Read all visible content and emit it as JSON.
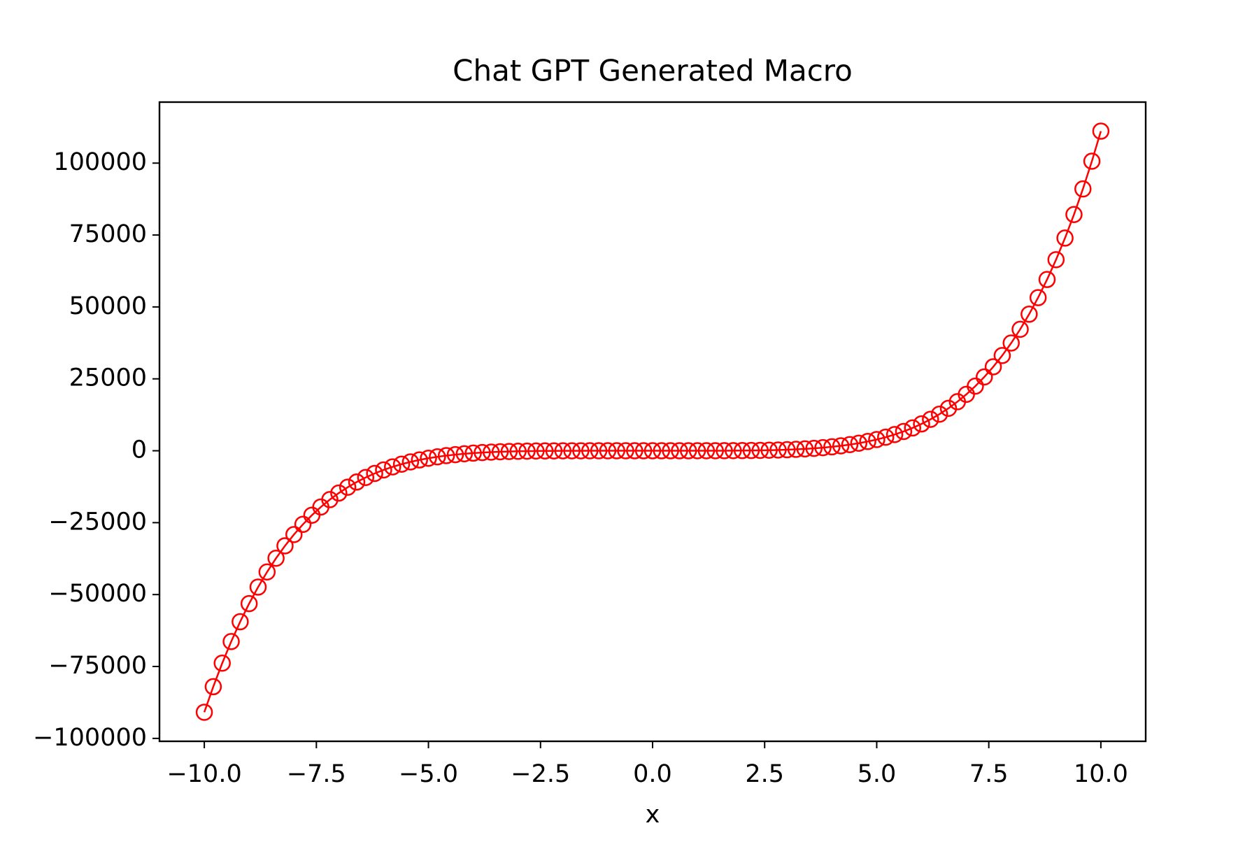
{
  "chart_data": {
    "type": "line",
    "title": "Chat GPT Generated Macro",
    "x_label": "x",
    "marker": "open-circle",
    "color": "#ff0000",
    "grid": false,
    "xlim": [
      -11,
      11
    ],
    "ylim": [
      -101010,
      121212
    ],
    "xticks": [
      {
        "value": -10,
        "label": "−10.0"
      },
      {
        "value": -7.5,
        "label": "−7.5"
      },
      {
        "value": -5,
        "label": "−5.0"
      },
      {
        "value": -2.5,
        "label": "−2.5"
      },
      {
        "value": 0,
        "label": "0.0"
      },
      2.5,
      {
        "value": 5,
        "label": "5.0"
      },
      7.5,
      {
        "value": 10,
        "label": "10.0"
      }
    ],
    "yticks": [
      {
        "value": -100000,
        "label": "−100000"
      },
      {
        "value": -75000,
        "label": "−75000"
      },
      {
        "value": -50000,
        "label": "−50000"
      },
      {
        "value": -25000,
        "label": "−25000"
      },
      0,
      25000,
      50000,
      75000,
      100000
    ],
    "x": [
      -10,
      -9.8,
      -9.6,
      -9.4,
      -9.2,
      -9,
      -8.8,
      -8.6,
      -8.4,
      -8.2,
      -8,
      -7.8,
      -7.6,
      -7.4,
      -7.2,
      -7,
      -6.8,
      -6.6,
      -6.4,
      -6.2,
      -6,
      -5.8,
      -5.6,
      -5.4,
      -5.2,
      -5,
      -4.8,
      -4.6,
      -4.4,
      -4.2,
      -4,
      -3.8,
      -3.6,
      -3.4,
      -3.2,
      -3,
      -2.8,
      -2.6,
      -2.4,
      -2.2,
      -2,
      -1.8,
      -1.6,
      -1.4,
      -1.2,
      -1,
      -0.8,
      -0.6,
      -0.4,
      -0.2,
      0,
      0.2,
      0.4,
      0.6,
      0.8,
      1,
      1.2,
      1.4,
      1.6,
      1.8,
      2,
      2.2,
      2.4,
      2.6,
      2.8,
      3,
      3.2,
      3.4,
      3.6,
      3.8,
      4,
      4.2,
      4.4,
      4.6,
      4.8,
      5,
      5.2,
      5.4,
      5.6,
      5.8,
      6,
      6.2,
      6.4,
      6.6,
      6.8,
      7,
      7.2,
      7.4,
      7.6,
      7.8,
      8,
      8.2,
      8.4,
      8.6,
      8.8,
      9,
      9.2,
      9.4,
      9.6,
      9.8,
      10
    ],
    "values": [
      -90909,
      -82022.4,
      -73845,
      -66333.5,
      -59446.5,
      -53144,
      -47388.1,
      -42142.3,
      -37372,
      -33044.1,
      -29127,
      -25590.8,
      -22406.9,
      -19548.3,
      -16989.4,
      -14706,
      -12675.2,
      -10875.4,
      -9286.3,
      -7888.8,
      -6665,
      -5598.2,
      -4672.7,
      -3874.1,
      -3188.9,
      -2604,
      -2108.6,
      -1691.7,
      -1343.6,
      -1055.4,
      -819,
      -626.9,
      -473,
      -350.9,
      -255.4,
      -182,
      -126.6,
      -85.5,
      -55.9,
      -35.1,
      -21,
      -11.8,
      -6.1,
      -2.7,
      -0.9,
      0,
      0.6,
      0.6,
      0.7,
      0.8,
      1,
      1.2,
      1.7,
      2.4,
      3.5,
      6,
      9.9,
      16.3,
      26.3,
      41.3,
      63,
      93.6,
      135.8,
      192.4,
      267.2,
      364,
      487.6,
      643.3,
      836.8,
      1074.8,
      1365,
      1715,
      2133.9,
      2631.5,
      3218.3,
      3906,
      4707.2,
      5635,
      6704.3,
      7930.8,
      9331,
      10922.9,
      12725.6,
      14759.5,
      17046,
      19608,
      22469.9,
      25657.1,
      29196.8,
      33117.4,
      37449,
      42223,
      47472.6,
      53232.4,
      59538.9,
      66430,
      73945.6,
      82127.2,
      91018.2,
      100663.8,
      111111
    ]
  }
}
